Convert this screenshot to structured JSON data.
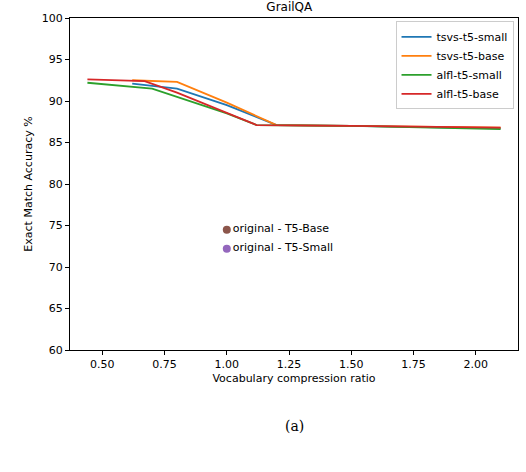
{
  "chart_data": {
    "type": "line",
    "title": "GrailQA",
    "x_label": "Vocabulary compression ratio",
    "y_label": "Exact Match Accuracy %",
    "caption": "(a)",
    "xlim": [
      0.37,
      2.17
    ],
    "xticks": [
      {
        "value": 0.5,
        "label": "0.50"
      },
      0.75,
      {
        "value": 1,
        "label": "1.00"
      },
      1.25,
      {
        "value": 1.5,
        "label": "1.50"
      },
      1.75,
      {
        "value": 2,
        "label": "2.00"
      }
    ],
    "ylim": [
      60,
      100
    ],
    "yticks": [
      60,
      65,
      70,
      75,
      80,
      85,
      90,
      95,
      100
    ],
    "grid": false,
    "legend": "upper right",
    "series": [
      {
        "name": "tsvs-t5-small",
        "color": "#1f77b4",
        "x": [
          0.62,
          0.8,
          1.0,
          1.2,
          1.5,
          2.1
        ],
        "values": [
          92.1,
          91.5,
          89.5,
          87.1,
          87.0,
          86.7
        ]
      },
      {
        "name": "tsvs-t5-base",
        "color": "#ff7f0e",
        "x": [
          0.62,
          0.8,
          1.0,
          1.2,
          1.5,
          2.1
        ],
        "values": [
          92.5,
          92.3,
          89.8,
          87.1,
          87.0,
          86.8
        ]
      },
      {
        "name": "alfl-t5-small",
        "color": "#2ca02c",
        "x": [
          0.44,
          0.7,
          1.0,
          1.12,
          1.5,
          2.1
        ],
        "values": [
          92.2,
          91.5,
          88.5,
          87.1,
          87.0,
          86.6
        ]
      },
      {
        "name": "alfl-t5-base",
        "color": "#d62728",
        "x": [
          0.44,
          0.67,
          0.8,
          1.12,
          1.5,
          2.1
        ],
        "values": [
          92.6,
          92.4,
          91.0,
          87.1,
          87.0,
          86.8
        ]
      },
      {
        "name": "original - T5-Base",
        "type": "scatter",
        "marker": "circle",
        "color": "#8c564b",
        "x": [
          1.0
        ],
        "values": [
          74.5
        ]
      },
      {
        "name": "original - T5-Small",
        "type": "scatter",
        "marker": "circle",
        "color": "#9467bd",
        "x": [
          1.0
        ],
        "values": [
          72.2
        ]
      }
    ]
  }
}
